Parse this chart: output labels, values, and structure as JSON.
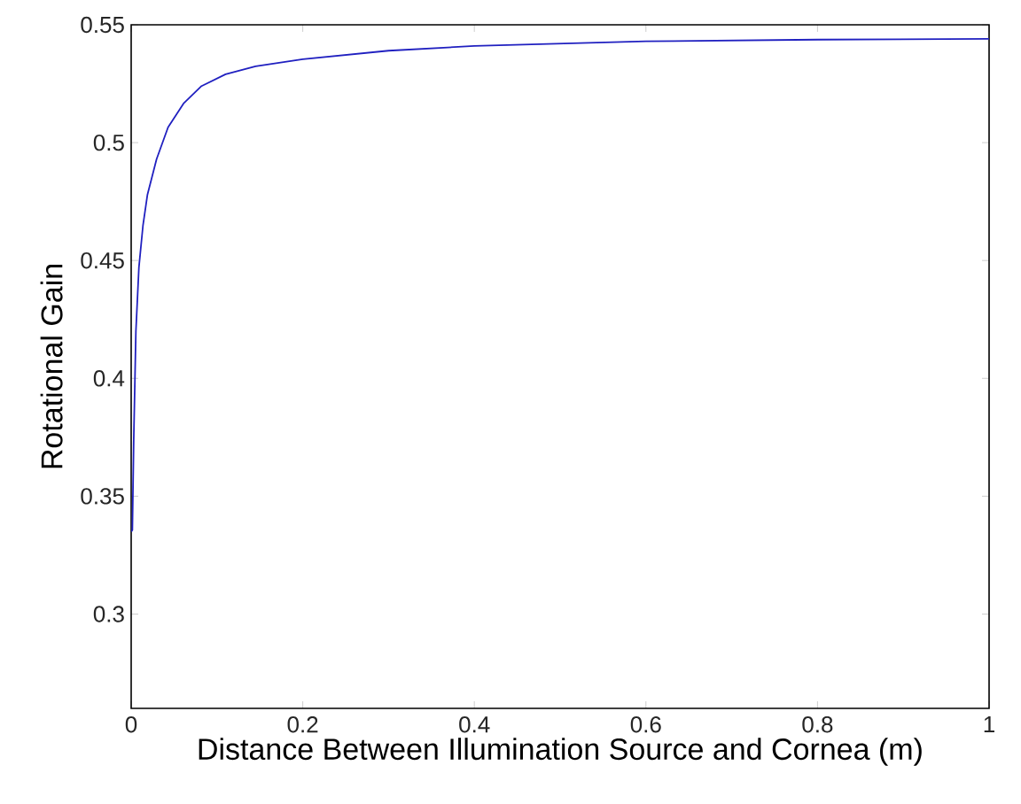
{
  "chart_data": {
    "type": "line",
    "xlabel": "Distance Between Illumination Source and Cornea  (m)",
    "ylabel": "Rotational Gain",
    "x": [
      0,
      0.0014,
      0.003,
      0.0055,
      0.009,
      0.0138,
      0.019,
      0.0296,
      0.043,
      0.061,
      0.082,
      0.11,
      0.145,
      0.2,
      0.3,
      0.4,
      0.6,
      0.8,
      1.0
    ],
    "series": [
      {
        "color": "#2020c0",
        "values": [
          0.335,
          0.3356,
          0.3745,
          0.42,
          0.447,
          0.465,
          0.478,
          0.493,
          0.5065,
          0.5166,
          0.524,
          0.529,
          0.5324,
          0.5354,
          0.539,
          0.541,
          0.543,
          0.5437,
          0.544
        ]
      }
    ],
    "xlim": [
      0,
      1
    ],
    "ylim": [
      0.26,
      0.55
    ],
    "xticks": [
      0,
      0.2,
      0.4,
      0.6,
      0.8,
      1
    ],
    "yticks": [
      0.3,
      0.35,
      0.4,
      0.45,
      0.5,
      0.55
    ]
  }
}
